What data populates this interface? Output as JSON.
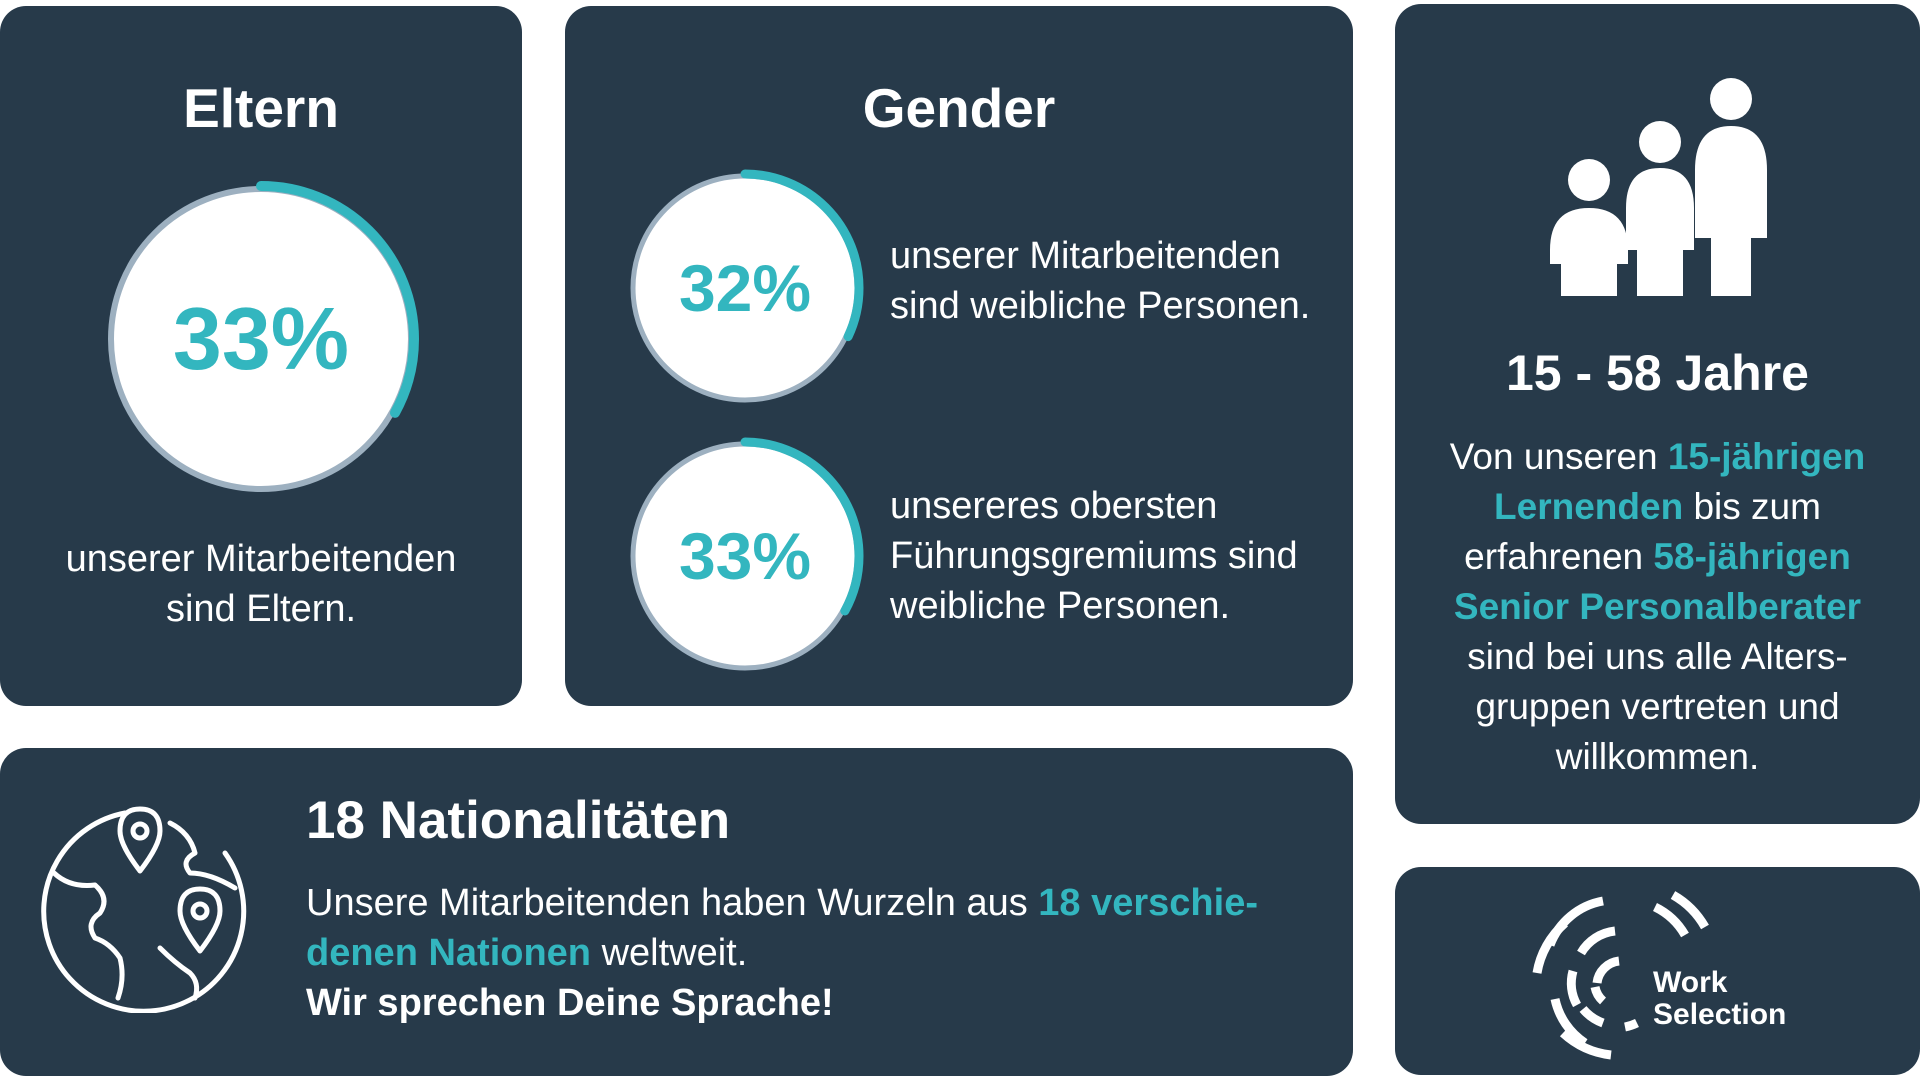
{
  "colors": {
    "card_bg": "#273a4a",
    "accent": "#33b6bf",
    "ring_track": "#9db0c0",
    "disc": "#ffffff"
  },
  "eltern": {
    "title": "Eltern",
    "percent": 33,
    "percent_label": "33%",
    "desc_line1": "unserer Mitarbeitenden",
    "desc_line2": "sind Eltern."
  },
  "gender": {
    "title": "Gender",
    "stats": [
      {
        "percent": 32,
        "percent_label": "32%",
        "line1": "unserer Mitarbeitenden",
        "line2": "sind weibliche Personen."
      },
      {
        "percent": 33,
        "percent_label": "33%",
        "line1": "unsereres obersten",
        "line2": "Führungsgremiums sind",
        "line3": "weibliche Personen."
      }
    ]
  },
  "age": {
    "icon": "family-icon",
    "title": "15 - 58 Jahre",
    "t1": "Von unseren ",
    "a1": "15-jährigen",
    "a2": "Lernenden",
    "t2": " bis zum",
    "t3": "erfahrenen ",
    "a3": "58-jährigen",
    "a4": "Senior Personalberater",
    "t4": "sind bei uns alle Alters-",
    "t5": "gruppen vertreten und",
    "t6": "willkommen."
  },
  "nations": {
    "icon": "globe-icon",
    "title": "18 Nationalitäten",
    "t1": "Unsere Mitarbeitenden haben Wurzeln aus ",
    "a1": "18 verschie-",
    "a2": "denen Nationen",
    "t2": " weltweit.",
    "bold": "Wir sprechen Deine Sprache!"
  },
  "logo": {
    "icon": "work-selection-logo",
    "line1": "Work",
    "line2": "Selection"
  }
}
